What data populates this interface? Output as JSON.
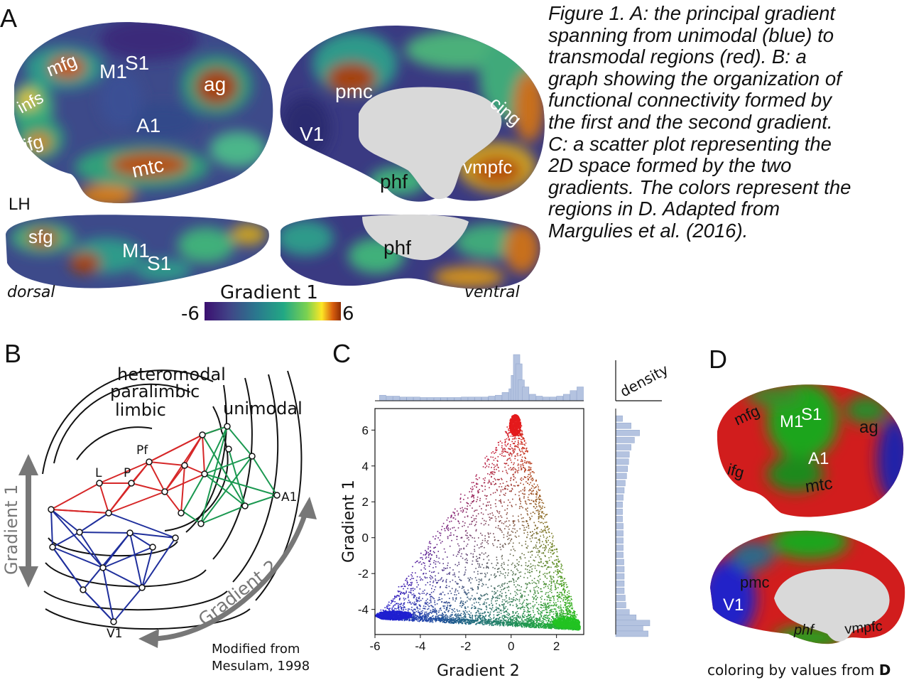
{
  "panels": {
    "a": "A",
    "b": "B",
    "c": "C",
    "d": "D"
  },
  "caption_lines": [
    "Figure 1. A: the principal gradient",
    "spanning from unimodal (blue) to",
    "transmodal regions (red). B: a",
    "graph showing the organization of",
    "functional connectivity formed by",
    "the first and the second gradient.",
    "C: a scatter plot representing the",
    "2D space formed by the two",
    "gradients. The colors represent the",
    "regions in D. Adapted from",
    "Margulies et al. (2016)."
  ],
  "panel_a": {
    "lateral_labels": {
      "mfg": "mfg",
      "m1": "M1",
      "s1": "S1",
      "ag": "ag",
      "infs": "infs",
      "a1": "A1",
      "ifg": "ifg",
      "mtc": "mtc"
    },
    "medial_labels": {
      "pmc": "pmc",
      "cing": "cing",
      "v1": "V1",
      "vmpfc": "vmpfc",
      "phf": "phf"
    },
    "hemisphere": "LH",
    "dorsal_labels": {
      "sfg": "sfg",
      "m1": "M1",
      "s1": "S1"
    },
    "ventral_labels": {
      "phf": "phf"
    },
    "view_dorsal": "dorsal",
    "view_ventral": "ventral",
    "colorbar": {
      "title": "Gradient 1",
      "min": "-6",
      "max": "6",
      "colors": [
        "#3b0f70",
        "#414487",
        "#2a788e",
        "#22a884",
        "#7ad151",
        "#fde725",
        "#d95f0e",
        "#8c2d04"
      ]
    }
  },
  "panel_b": {
    "ring_labels": {
      "heteromodal": "heteromodal",
      "paralimbic": "paralimbic",
      "limbic": "limbic",
      "unimodal": "unimodal"
    },
    "node_labels": {
      "pf": "Pf",
      "l": "L",
      "p": "P",
      "a1": "A1",
      "v1": "V1"
    },
    "axis1": "Gradient 1",
    "axis2": "Gradient 2",
    "credit_line1": "Modified from",
    "credit_line2": "Mesulam, 1998",
    "colors": {
      "red": "#d62728",
      "green": "#1a9850",
      "blue": "#1f2f9c",
      "arrow": "#777777"
    }
  },
  "chart_data": {
    "type": "scatter",
    "xlabel": "Gradient 2",
    "ylabel": "Gradient 1",
    "xlim": [
      -6,
      3.2
    ],
    "ylim": [
      -5.4,
      7.2
    ],
    "x_ticks": [
      -6,
      -4,
      -2,
      0,
      2
    ],
    "y_ticks": [
      -4,
      -2,
      0,
      2,
      4,
      6
    ],
    "marginal_label": "density",
    "shape_vertices": [
      [
        0.2,
        6.7
      ],
      [
        -5.8,
        -4.4
      ],
      [
        2.9,
        -5.0
      ]
    ],
    "corner_colors": {
      "top": "#e41a1c",
      "left": "#1f1fd0",
      "right": "#22c322"
    },
    "top_hist": {
      "bins": [
        -5.8,
        -5.5,
        -5.2,
        -4.9,
        -4.6,
        -4.3,
        -4.0,
        -3.7,
        -3.4,
        -3.1,
        -2.8,
        -2.5,
        -2.2,
        -1.9,
        -1.6,
        -1.3,
        -1.0,
        -0.7,
        -0.4,
        -0.1,
        0.0,
        0.1,
        0.2,
        0.3,
        0.5,
        0.8,
        1.1,
        1.4,
        1.7,
        2.0,
        2.3,
        2.6,
        2.9
      ],
      "heights": [
        0.12,
        0.1,
        0.1,
        0.08,
        0.08,
        0.08,
        0.07,
        0.07,
        0.07,
        0.07,
        0.07,
        0.07,
        0.08,
        0.08,
        0.08,
        0.08,
        0.1,
        0.12,
        0.18,
        0.26,
        0.55,
        1.0,
        0.8,
        0.45,
        0.3,
        0.14,
        0.1,
        0.08,
        0.08,
        0.1,
        0.14,
        0.22,
        0.3
      ]
    },
    "right_hist": {
      "bins": [
        6.8,
        6.4,
        6.0,
        5.6,
        5.2,
        4.8,
        4.4,
        4.0,
        3.6,
        3.2,
        2.8,
        2.4,
        2.0,
        1.6,
        1.2,
        0.8,
        0.4,
        0.0,
        -0.4,
        -0.8,
        -1.2,
        -1.6,
        -2.0,
        -2.4,
        -2.8,
        -3.2,
        -3.6,
        -4.0,
        -4.3,
        -4.6,
        -4.9,
        -5.2
      ],
      "heights": [
        0.2,
        0.45,
        0.7,
        0.55,
        0.45,
        0.4,
        0.38,
        0.35,
        0.32,
        0.28,
        0.25,
        0.22,
        0.2,
        0.2,
        0.2,
        0.22,
        0.22,
        0.22,
        0.22,
        0.22,
        0.24,
        0.25,
        0.25,
        0.25,
        0.25,
        0.28,
        0.3,
        0.4,
        0.6,
        1.0,
        0.8,
        0.95
      ]
    }
  },
  "panel_d": {
    "lateral_labels": {
      "mfg": "mfg",
      "m1": "M1",
      "s1": "S1",
      "ag": "ag",
      "a1": "A1",
      "ifg": "ifg",
      "mtc": "mtc"
    },
    "medial_labels": {
      "pmc": "pmc",
      "v1": "V1",
      "phf": "phf",
      "vmpfc": "vmpfc"
    },
    "footer_text": "coloring by values from",
    "footer_bold": "D"
  }
}
